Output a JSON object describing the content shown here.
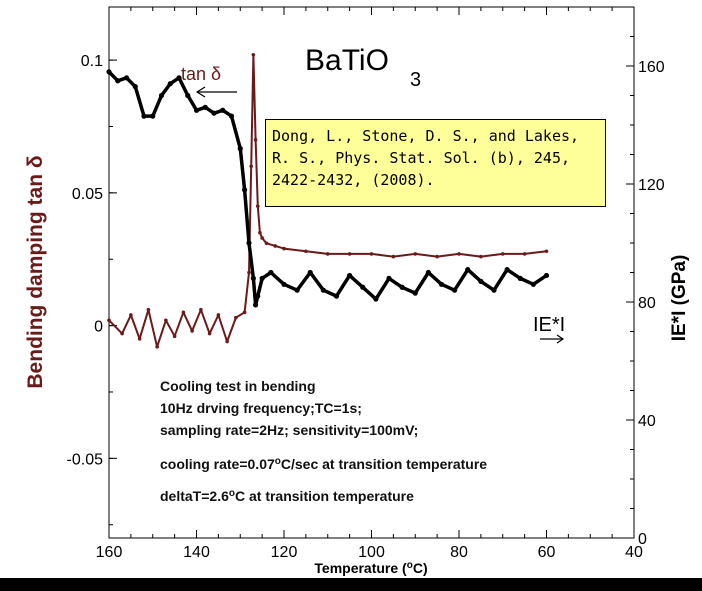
{
  "chart_data": {
    "type": "line",
    "title": "BaTiO",
    "title_sub": "3",
    "xlabel": "Temperature (°C)",
    "xlabel_parts": [
      "Temperature (",
      "o",
      "C)"
    ],
    "ylabel_left": "Bending damping tan δ",
    "ylabel_right": "IE*I (GPa)",
    "xlim": [
      160,
      40
    ],
    "ylim_left": [
      -0.08,
      0.12
    ],
    "ylim_right": [
      0,
      180
    ],
    "x_ticks": [
      "160",
      "140",
      "120",
      "100",
      "80",
      "60",
      "40"
    ],
    "y_left_ticks": [
      "0.1",
      "0.05",
      "0",
      "-0.05"
    ],
    "y_right_ticks": [
      "160",
      "120",
      "80",
      "40",
      "0"
    ],
    "series": [
      {
        "name": "tan δ",
        "color": "#6b1a1a",
        "axis": "left",
        "x": [
          160,
          157,
          155,
          153,
          151,
          149,
          147,
          145,
          143,
          141,
          139,
          137,
          135,
          133,
          131,
          129,
          128,
          127.5,
          127,
          126.5,
          126,
          125.5,
          125,
          124,
          122,
          120,
          115,
          110,
          105,
          100,
          95,
          90,
          85,
          80,
          75,
          70,
          65,
          60
        ],
        "y": [
          0.002,
          -0.003,
          0.004,
          -0.005,
          0.006,
          -0.008,
          0.002,
          -0.004,
          0.005,
          -0.002,
          0.006,
          -0.003,
          0.004,
          -0.006,
          0.003,
          0.005,
          0.02,
          0.06,
          0.102,
          0.07,
          0.045,
          0.035,
          0.033,
          0.031,
          0.03,
          0.029,
          0.028,
          0.027,
          0.027,
          0.027,
          0.026,
          0.027,
          0.026,
          0.027,
          0.026,
          0.027,
          0.027,
          0.028
        ]
      },
      {
        "name": "IE*I",
        "color": "#000000",
        "axis": "right",
        "x": [
          160,
          158,
          156,
          154,
          152,
          150,
          148,
          146,
          144,
          142,
          140,
          138,
          136,
          134,
          132,
          130,
          129,
          128,
          127,
          126.5,
          126,
          125,
          123,
          120,
          117,
          114,
          111,
          108,
          105,
          102,
          99,
          96,
          93,
          90,
          87,
          84,
          81,
          78,
          75,
          72,
          69,
          66,
          63,
          60
        ],
        "y": [
          158,
          155,
          156,
          153,
          143,
          143,
          150,
          154,
          156,
          150,
          145,
          146,
          144,
          145,
          143,
          132,
          118,
          100,
          88,
          79,
          82,
          88,
          90,
          86,
          84,
          90,
          84,
          82,
          89,
          85,
          81,
          88,
          85,
          83,
          90,
          86,
          84,
          91,
          87,
          84,
          91,
          88,
          86,
          89
        ]
      }
    ],
    "annotations": {
      "tan_label": "tan δ",
      "ie_label": "IE*I",
      "notes": [
        "Cooling test in bending",
        "10Hz drving frequency;TC=1s;",
        "sampling rate=2Hz; sensitivity=100mV;",
        "cooling rate=0.07°C/sec at transition temperature",
        "deltaT=2.6°C at transition temperature"
      ],
      "note4_parts": [
        "cooling rate=0.07",
        "o",
        "C/sec at transition temperature"
      ],
      "note5_parts": [
        "deltaT=2.6",
        "o",
        "C at transition temperature"
      ],
      "citation": "Dong, L., Stone, D. S., and Lakes,\nR. S., Phys. Stat. Sol. (b), 245,\n2422-2432, (2008)."
    }
  }
}
